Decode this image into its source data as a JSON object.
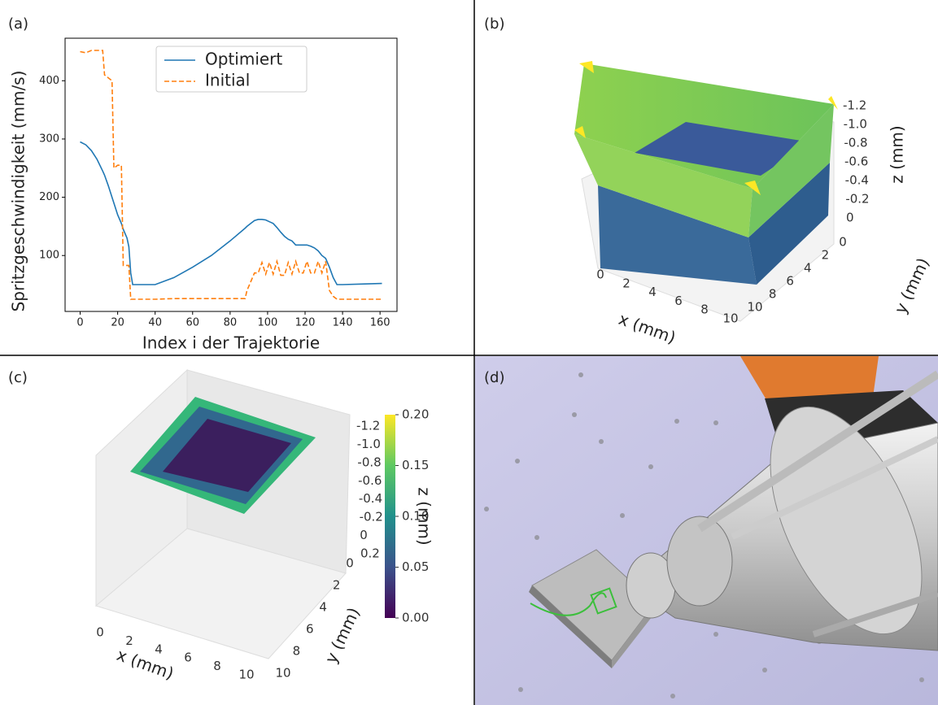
{
  "chart_data": [
    {
      "type": "line",
      "panel_label": "(a)",
      "xlabel": "Index i der Trajektorie",
      "ylabel": "Spritzgeschwindigkeit (mm/s)",
      "x": [
        0,
        3,
        6,
        9,
        12,
        13,
        15,
        17,
        18,
        20,
        22,
        23,
        25,
        26,
        27,
        28,
        30,
        40,
        50,
        60,
        70,
        80,
        88,
        89,
        91,
        93,
        95,
        97,
        99,
        101,
        103,
        105,
        107,
        109,
        111,
        113,
        115,
        117,
        119,
        121,
        123,
        125,
        127,
        129,
        131,
        133,
        135,
        137,
        140,
        150,
        161
      ],
      "series": [
        {
          "name": "Optimiert",
          "color": "#1f77b4",
          "linestyle": "solid",
          "values": [
            295,
            290,
            280,
            265,
            245,
            238,
            220,
            200,
            190,
            170,
            155,
            145,
            130,
            115,
            70,
            50,
            50,
            50,
            62,
            80,
            100,
            125,
            147,
            150,
            155,
            160,
            162,
            162,
            161,
            158,
            155,
            148,
            140,
            133,
            128,
            125,
            118,
            118,
            118,
            118,
            116,
            113,
            108,
            100,
            95,
            80,
            62,
            50,
            50,
            51,
            52
          ]
        },
        {
          "name": "Initial",
          "color": "#ff7f0e",
          "linestyle": "dashed",
          "values": [
            450,
            448,
            452,
            452,
            452,
            410,
            405,
            400,
            250,
            255,
            255,
            83,
            83,
            83,
            25,
            25,
            25,
            25,
            26,
            26,
            26,
            26,
            26,
            40,
            55,
            70,
            70,
            88,
            68,
            88,
            68,
            90,
            66,
            66,
            88,
            68,
            90,
            70,
            70,
            90,
            70,
            70,
            90,
            70,
            90,
            40,
            30,
            25,
            25,
            25,
            25
          ]
        }
      ],
      "xlim": [
        -8.05,
        169.05
      ],
      "xticks": [
        0,
        20,
        40,
        60,
        80,
        100,
        120,
        140,
        160
      ],
      "ylim": [
        4,
        473
      ],
      "yticks": [
        100,
        200,
        300,
        400
      ],
      "legend": "upper center"
    },
    {
      "type": "surface3d",
      "panel_label": "(b)",
      "xlabel": "x (mm)",
      "ylabel": "y (mm)",
      "zlabel": "z (mm)",
      "xlim": [
        0,
        10
      ],
      "xticks": [
        0,
        2,
        4,
        6,
        8,
        10
      ],
      "ylim": [
        0,
        10
      ],
      "yticks": [
        0,
        2,
        4,
        6,
        8,
        10
      ],
      "zlim": [
        -1.2,
        0
      ],
      "zticks": [
        0,
        -0.2,
        -0.4,
        -0.6,
        -0.8,
        {
          "value": -1,
          "label": "-1.0"
        },
        -1.2
      ]
    },
    {
      "type": "surface3d",
      "panel_label": "(c)",
      "xlabel": "x (mm)",
      "ylabel": "y (mm)",
      "zlabel": "z (mm)",
      "xlim": [
        0,
        10
      ],
      "xticks": [
        0,
        2,
        4,
        6,
        8,
        10
      ],
      "ylim": [
        0,
        10
      ],
      "yticks": [
        0,
        2,
        4,
        6,
        8,
        10
      ],
      "zlim": [
        -1.2,
        0.2
      ],
      "zticks": [
        0.2,
        0,
        -0.2,
        -0.4,
        -0.6,
        -0.8,
        {
          "value": -1,
          "label": "-1.0"
        },
        -1.2
      ],
      "colorbar_lim": [
        0,
        0.2
      ],
      "colorbar_ticks": [
        {
          "value": 0,
          "label": "0.00"
        },
        {
          "value": 0.05,
          "label": "0.05"
        },
        {
          "value": 0.1,
          "label": "0.10"
        },
        {
          "value": 0.15,
          "label": "0.15"
        },
        {
          "value": 0.2,
          "label": "0.20"
        }
      ]
    }
  ],
  "panel_d": {
    "label": "(d)"
  }
}
